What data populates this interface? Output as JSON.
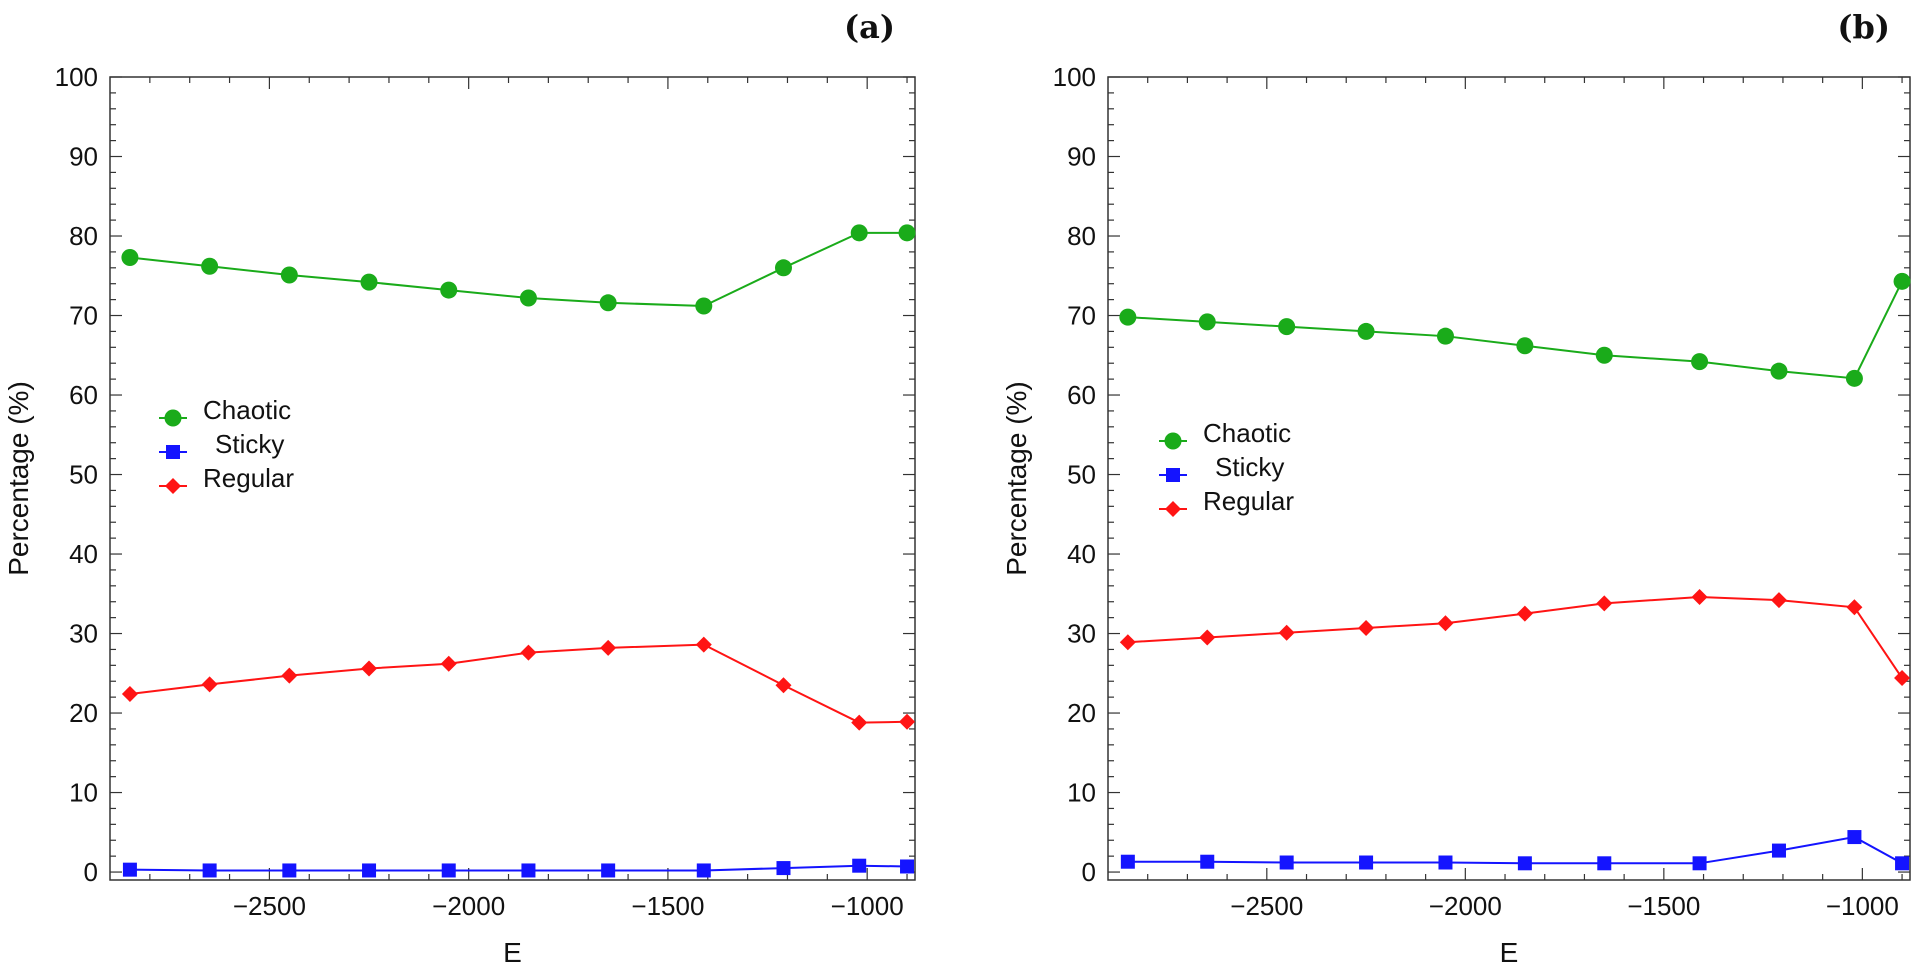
{
  "chart_data": [
    {
      "type": "line",
      "panel_label": "(a)",
      "xlabel": "E",
      "ylabel": "Percentage (%)",
      "xlim": [
        -2900,
        -880
      ],
      "ylim": [
        -1,
        100
      ],
      "x_ticks": [
        -2500,
        -2000,
        -1500,
        -1000
      ],
      "x_tick_labels": [
        "−2500",
        "−2000",
        "−1500",
        "−1000"
      ],
      "y_ticks": [
        0,
        10,
        20,
        30,
        40,
        50,
        60,
        70,
        80,
        90,
        100
      ],
      "y_tick_labels": [
        "0",
        "10",
        "20",
        "30",
        "40",
        "50",
        "60",
        "70",
        "80",
        "90",
        "100"
      ],
      "legend_position": "middle-left",
      "x": [
        -2850,
        -2650,
        -2450,
        -2250,
        -2050,
        -1850,
        -1650,
        -1410,
        -1210,
        -1020,
        -900
      ],
      "series": [
        {
          "name": "Chaotic",
          "marker": "circle",
          "color": "#1aab1a",
          "values": [
            77.3,
            76.2,
            75.1,
            74.2,
            73.2,
            72.2,
            71.6,
            71.2,
            76.0,
            80.4,
            80.4
          ]
        },
        {
          "name": "Sticky",
          "marker": "square",
          "color": "#1414ff",
          "values": [
            0.3,
            0.2,
            0.2,
            0.2,
            0.2,
            0.2,
            0.2,
            0.2,
            0.5,
            0.8,
            0.7
          ]
        },
        {
          "name": "Regular",
          "marker": "diamond",
          "color": "#ff1414",
          "values": [
            22.4,
            23.6,
            24.7,
            25.6,
            26.2,
            27.6,
            28.2,
            28.6,
            23.5,
            18.8,
            18.9
          ]
        }
      ]
    },
    {
      "type": "line",
      "panel_label": "(b)",
      "xlabel": "E",
      "ylabel": "Percentage (%)",
      "xlim": [
        -2900,
        -880
      ],
      "ylim": [
        -1,
        100
      ],
      "x_ticks": [
        -2500,
        -2000,
        -1500,
        -1000
      ],
      "x_tick_labels": [
        "−2500",
        "−2000",
        "−1500",
        "−1000"
      ],
      "y_ticks": [
        0,
        10,
        20,
        30,
        40,
        50,
        60,
        70,
        80,
        90,
        100
      ],
      "y_tick_labels": [
        "0",
        "10",
        "20",
        "30",
        "40",
        "50",
        "60",
        "70",
        "80",
        "90",
        "100"
      ],
      "legend_position": "middle-left",
      "x": [
        -2850,
        -2650,
        -2450,
        -2250,
        -2050,
        -1850,
        -1650,
        -1410,
        -1210,
        -1020,
        -900
      ],
      "series": [
        {
          "name": "Chaotic",
          "marker": "circle",
          "color": "#1aab1a",
          "values": [
            69.8,
            69.2,
            68.6,
            68.0,
            67.4,
            66.2,
            65.0,
            64.2,
            63.0,
            62.1,
            74.3
          ]
        },
        {
          "name": "Sticky",
          "marker": "square",
          "color": "#1414ff",
          "values": [
            1.3,
            1.3,
            1.2,
            1.2,
            1.2,
            1.1,
            1.1,
            1.1,
            2.7,
            4.4,
            1.1
          ]
        },
        {
          "name": "Regular",
          "marker": "diamond",
          "color": "#ff1414",
          "values": [
            28.9,
            29.5,
            30.1,
            30.7,
            31.3,
            32.5,
            33.8,
            34.6,
            34.2,
            33.3,
            24.4
          ]
        }
      ]
    }
  ]
}
